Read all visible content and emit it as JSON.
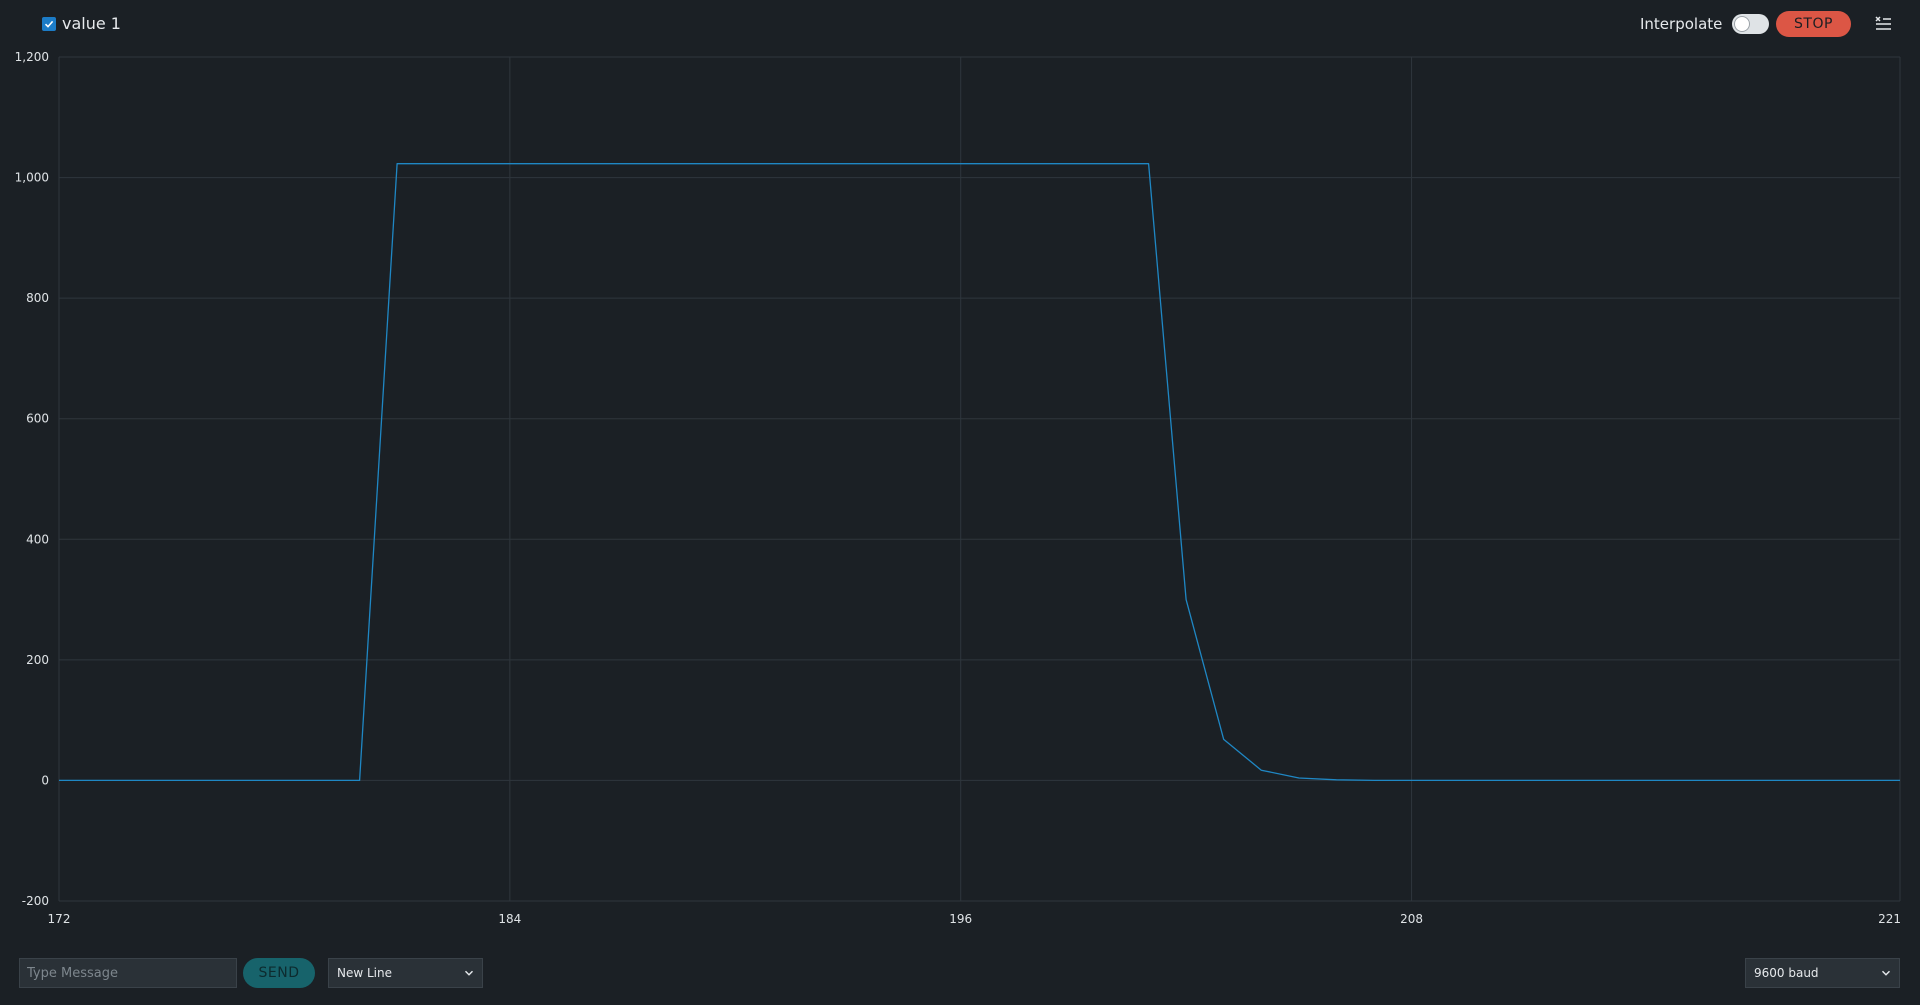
{
  "legend": {
    "series_label": "value 1",
    "checked": true
  },
  "toolbar": {
    "interpolate_label": "Interpolate",
    "interpolate_on": false,
    "stop_label": "STOP"
  },
  "icons": {
    "clear": "clear-list-icon",
    "checkbox": "check-icon",
    "dropdown": "chevron-down-icon"
  },
  "colors": {
    "background": "#1b2025",
    "grid": "#2f363d",
    "series": "#1f87c4",
    "stop": "#dc5645",
    "send": "#17636b"
  },
  "footer": {
    "message_placeholder": "Type Message",
    "send_label": "SEND",
    "line_ending": "New Line",
    "baud_rate": "9600 baud"
  },
  "chart_data": {
    "type": "line",
    "title": "",
    "xlabel": "",
    "ylabel": "",
    "xlim": [
      172,
      221
    ],
    "ylim": [
      -200,
      1200
    ],
    "x_ticks": [
      "172",
      "184",
      "196",
      "208",
      "221"
    ],
    "y_ticks": [
      "1,200",
      "1,000",
      "800",
      "600",
      "400",
      "200",
      "0",
      "-200"
    ],
    "grid": true,
    "series": [
      {
        "name": "value 1",
        "x": [
          172,
          180,
          181,
          182,
          183,
          184,
          185,
          186,
          187,
          188,
          189,
          190,
          191,
          192,
          193,
          194,
          195,
          196,
          197,
          198,
          199,
          200,
          201,
          202,
          203,
          204,
          205,
          206,
          207,
          208,
          221
        ],
        "y": [
          0,
          0,
          1023,
          1023,
          1023,
          1023,
          1023,
          1023,
          1023,
          1023,
          1023,
          1023,
          1023,
          1023,
          1023,
          1023,
          1023,
          1023,
          1023,
          1023,
          1023,
          1023,
          1023,
          300,
          68,
          17,
          4,
          1,
          0,
          0,
          0
        ]
      }
    ]
  }
}
